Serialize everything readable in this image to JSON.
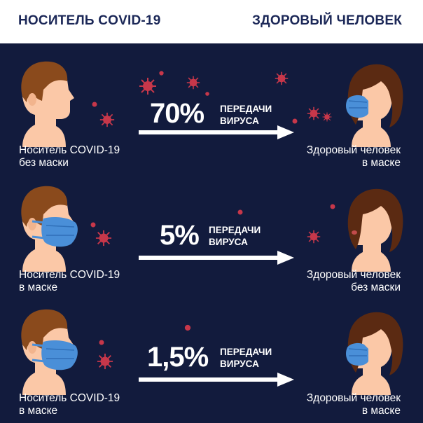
{
  "header": {
    "left_title": "НОСИТЕЛЬ COVID-19",
    "right_title": "ЗДОРОВЫЙ ЧЕЛОВЕК"
  },
  "colors": {
    "background": "#121b3d",
    "header_text": "#1b2757",
    "skin": "#fbc8a7",
    "hair_male": "#8a4a1c",
    "hair_female": "#5b2a12",
    "mask": "#4a8fd8",
    "virus": "#c7374a"
  },
  "rows": [
    {
      "percent": "70%",
      "percent_label_line1": "ПЕРЕДАЧИ",
      "percent_label_line2": "ВИРУСА",
      "carrier_line1": "Носитель COVID-19",
      "carrier_line2": "без маски",
      "healthy_line1": "Здоровый человек",
      "healthy_line2": "в маске",
      "carrier_masked": false,
      "healthy_masked": true
    },
    {
      "percent": "5%",
      "percent_label_line1": "ПЕРЕДАЧИ",
      "percent_label_line2": "ВИРУСА",
      "carrier_line1": "Носитель COVID-19",
      "carrier_line2": "в маске",
      "healthy_line1": "Здоровый человек",
      "healthy_line2": "без маски",
      "carrier_masked": true,
      "healthy_masked": false
    },
    {
      "percent": "1,5%",
      "percent_label_line1": "ПЕРЕДАЧИ",
      "percent_label_line2": "ВИРУСА",
      "carrier_line1": "Носитель COVID-19",
      "carrier_line2": "в маске",
      "healthy_line1": "Здоровый человек",
      "healthy_line2": "в маске",
      "carrier_masked": true,
      "healthy_masked": true
    }
  ]
}
